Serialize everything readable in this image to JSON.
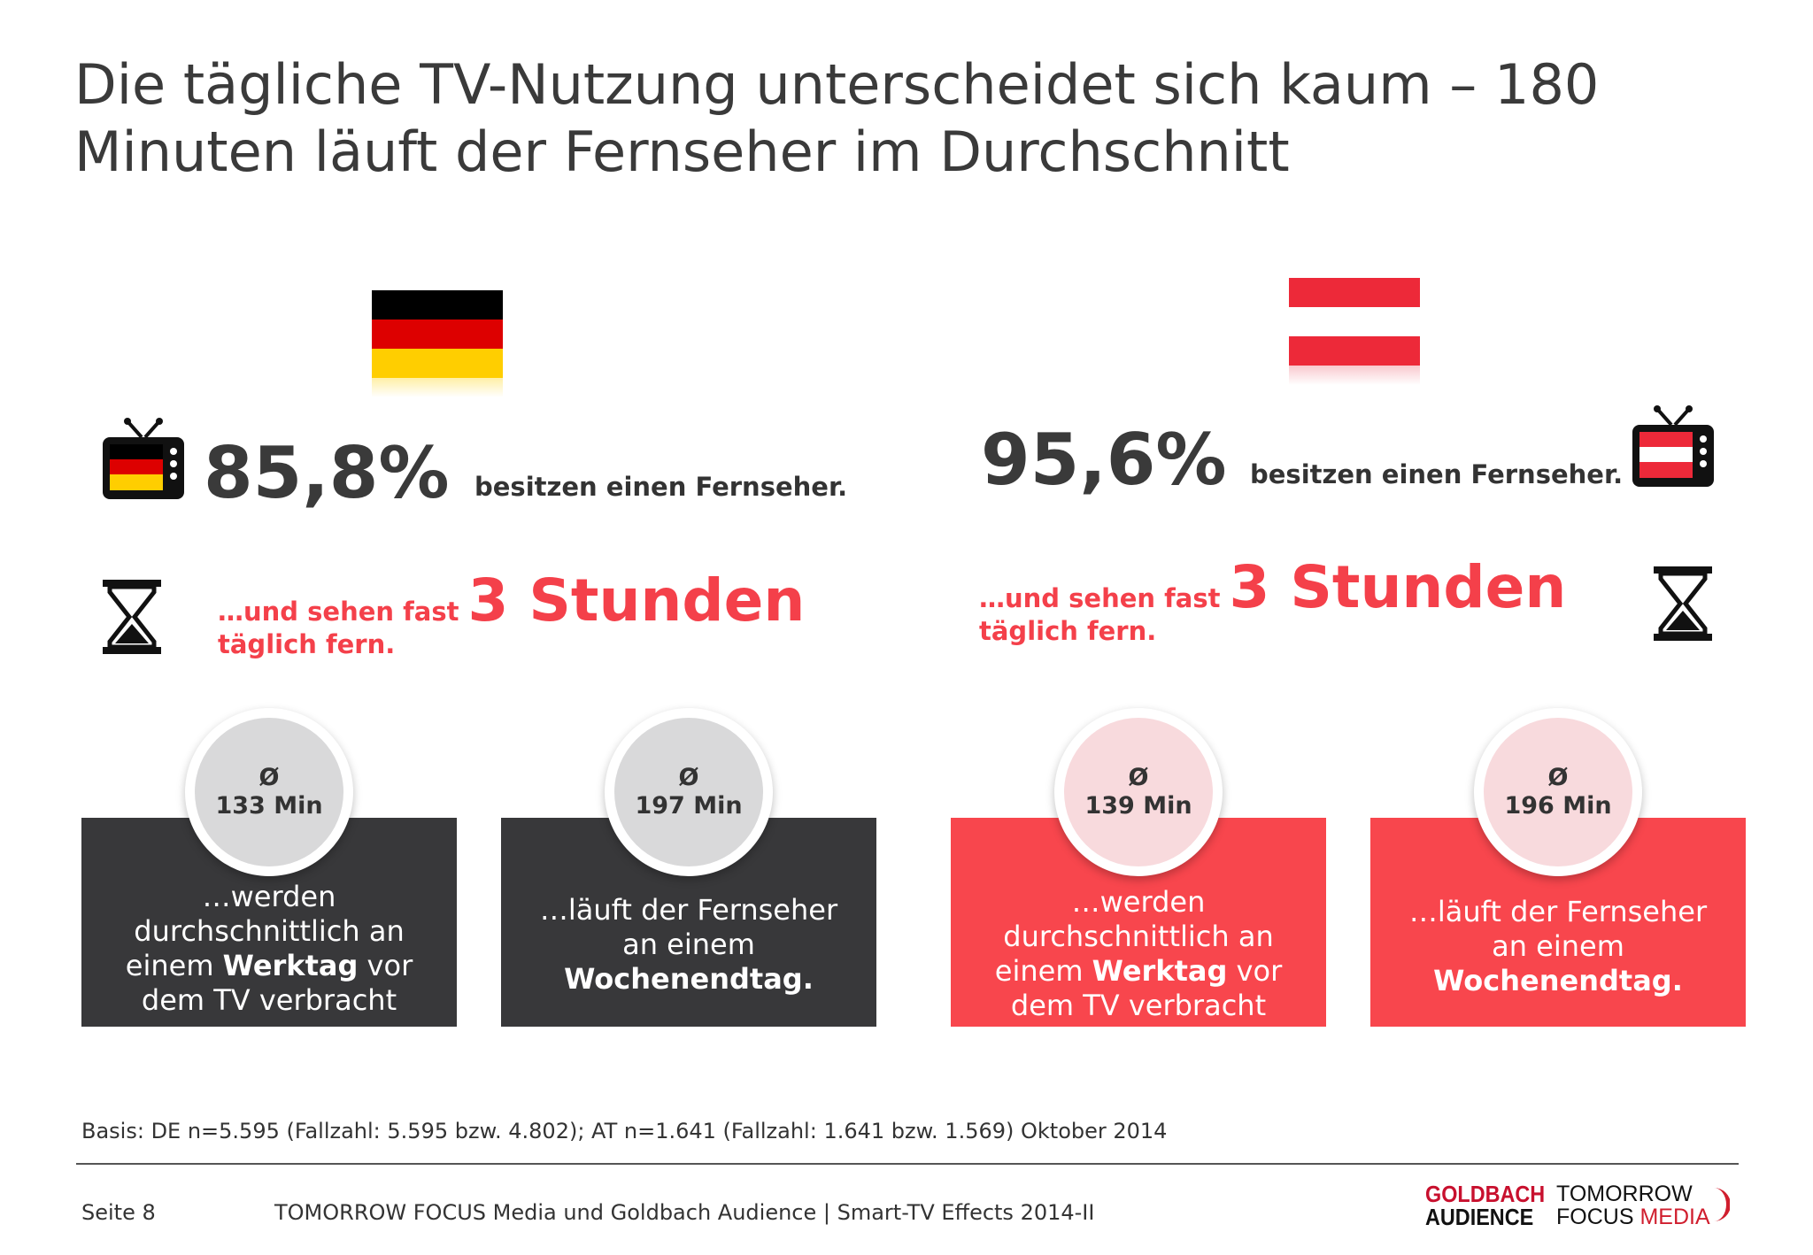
{
  "title": "Die tägliche TV-Nutzung unterscheidet sich kaum – 180 Minuten läuft der Fernseher im Durchschnitt",
  "colors": {
    "accent_red": "#f8464d",
    "dark_box": "#38383a",
    "text": "#3a3a3a"
  },
  "de": {
    "flag": "germany-flag",
    "percent": "85,8%",
    "percent_text": "besitzen einen Fernseher.",
    "hours_pre": "…und sehen fast",
    "hours_big": "3 Stunden",
    "hours_post": "täglich fern.",
    "weekday": {
      "symbol": "Ø",
      "value": "133 Min",
      "pre": "…werden durchschnittlich an einem ",
      "bold": "Werktag",
      "post": " vor dem TV verbracht"
    },
    "weekend": {
      "symbol": "Ø",
      "value": "197 Min",
      "pre": "…läuft der Fernseher an einem ",
      "bold": "Wochenendtag."
    }
  },
  "at": {
    "flag": "austria-flag",
    "percent": "95,6%",
    "percent_text": "besitzen einen Fernseher.",
    "hours_pre": "…und sehen fast",
    "hours_big": "3 Stunden",
    "hours_post": "täglich fern.",
    "weekday": {
      "symbol": "Ø",
      "value": "139 Min",
      "pre": "…werden durchschnittlich an einem ",
      "bold": "Werktag",
      "post": " vor dem TV verbracht"
    },
    "weekend": {
      "symbol": "Ø",
      "value": "196 Min",
      "pre": "…läuft der Fernseher an einem ",
      "bold": "Wochenendtag."
    }
  },
  "basis": "Basis: DE n=5.595 (Fallzahl: 5.595 bzw. 4.802); AT n=1.641 (Fallzahl: 1.641 bzw. 1.569) Oktober 2014",
  "page": "Seite 8",
  "footer": "TOMORROW FOCUS Media und Goldbach Audience | Smart-TV Effects 2014-II",
  "logos": {
    "goldbach_line1": "GOLDBACH",
    "goldbach_line2": "AUDIENCE",
    "tf_line1": "TOMORROW",
    "tf_line2a": "FOCUS ",
    "tf_line2b": "MEDIA"
  }
}
